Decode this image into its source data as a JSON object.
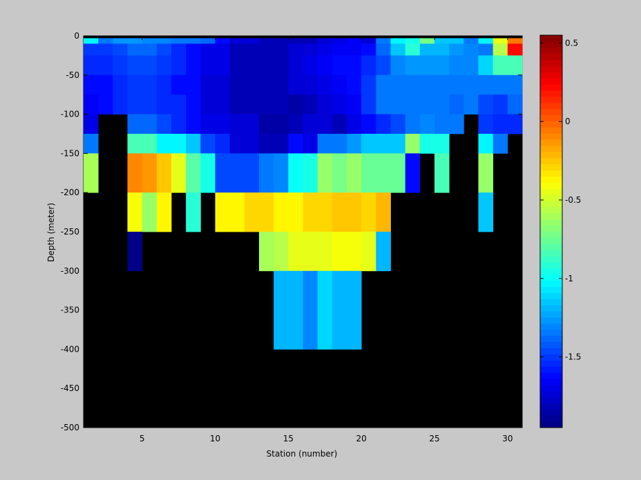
{
  "chart_data": {
    "type": "heatmap",
    "title": "",
    "xlabel": "Station (number)",
    "ylabel": "Depth (meter)",
    "xlim": [
      1,
      31
    ],
    "ylim": [
      -500,
      0
    ],
    "x_ticks": [
      5,
      10,
      15,
      20,
      25,
      30
    ],
    "y_ticks": [
      0,
      -50,
      -100,
      -150,
      -200,
      -250,
      -300,
      -350,
      -400,
      -450,
      -500
    ],
    "colorbar": {
      "range": [
        -1.95,
        0.55
      ],
      "ticks": [
        0.5,
        0,
        -0.5,
        -1,
        -1.5
      ],
      "tick_labels": [
        "0.5",
        "0",
        "-0.5",
        "-1",
        "-1.5"
      ],
      "colormap": "jet",
      "levels": 64
    },
    "missing_color": "#000000",
    "background_color": "#c8c8c8",
    "x": [
      1.5,
      2.5,
      3.5,
      4.5,
      5.5,
      6.5,
      7.5,
      8.5,
      9.5,
      10.5,
      11.5,
      12.5,
      13.5,
      14.5,
      15.5,
      16.5,
      17.5,
      18.5,
      19.5,
      20.5,
      21.5,
      22.5,
      23.5,
      24.5,
      25.5,
      26.5,
      27.5,
      28.5,
      29.5,
      30.5
    ],
    "depth_bands": [
      {
        "top": 0,
        "bottom": -3
      },
      {
        "top": -3,
        "bottom": -10
      },
      {
        "top": -10,
        "bottom": -25
      },
      {
        "top": -25,
        "bottom": -50
      },
      {
        "top": -50,
        "bottom": -75
      },
      {
        "top": -75,
        "bottom": -100
      },
      {
        "top": -100,
        "bottom": -125
      },
      {
        "top": -125,
        "bottom": -150
      },
      {
        "top": -150,
        "bottom": -200
      },
      {
        "top": -200,
        "bottom": -250
      },
      {
        "top": -250,
        "bottom": -300
      },
      {
        "top": -300,
        "bottom": -400
      },
      {
        "top": -400,
        "bottom": -500
      }
    ],
    "values": [
      [
        null,
        null,
        null,
        null,
        null,
        null,
        null,
        null,
        null,
        null,
        null,
        null,
        null,
        null,
        null,
        null,
        null,
        null,
        null,
        null,
        null,
        null,
        null,
        null,
        null,
        null,
        null,
        null,
        null,
        null
      ],
      [
        -1.05,
        -1.35,
        -1.25,
        -1.25,
        -1.3,
        -1.3,
        -1.35,
        -1.35,
        -1.4,
        -1.6,
        -1.75,
        -1.75,
        -1.8,
        -1.8,
        -1.8,
        -1.8,
        -1.75,
        -1.7,
        -1.65,
        -1.75,
        -1.35,
        -1.05,
        -0.95,
        -0.7,
        -1.15,
        -1.15,
        -1.35,
        -1.05,
        -0.45,
        -0.05
      ],
      [
        -1.5,
        -1.5,
        -1.45,
        -1.4,
        -1.4,
        -1.45,
        -1.55,
        -1.6,
        -1.7,
        -1.7,
        -1.8,
        -1.8,
        -1.8,
        -1.8,
        -1.75,
        -1.75,
        -1.7,
        -1.65,
        -1.65,
        -1.6,
        -1.4,
        -1.15,
        -0.9,
        -1.2,
        -1.2,
        -1.25,
        -1.3,
        -1.35,
        -0.55,
        0.2
      ],
      [
        -1.55,
        -1.55,
        -1.5,
        -1.45,
        -1.45,
        -1.5,
        -1.55,
        -1.6,
        -1.7,
        -1.7,
        -1.8,
        -1.8,
        -1.8,
        -1.8,
        -1.75,
        -1.7,
        -1.65,
        -1.6,
        -1.6,
        -1.55,
        -1.45,
        -1.3,
        -1.25,
        -1.25,
        -1.25,
        -1.3,
        -1.3,
        -1.1,
        -0.85,
        -0.85
      ],
      [
        -1.6,
        -1.6,
        -1.55,
        -1.5,
        -1.5,
        -1.55,
        -1.6,
        -1.6,
        -1.75,
        -1.75,
        -1.8,
        -1.8,
        -1.8,
        -1.8,
        -1.75,
        -1.75,
        -1.7,
        -1.65,
        -1.6,
        -1.5,
        -1.35,
        -1.35,
        -1.35,
        -1.35,
        -1.35,
        -1.35,
        -1.35,
        -1.35,
        -1.35,
        -1.35
      ],
      [
        -1.65,
        -1.6,
        -1.55,
        -1.5,
        -1.5,
        -1.55,
        -1.55,
        -1.6,
        -1.75,
        -1.75,
        -1.8,
        -1.8,
        -1.8,
        -1.8,
        -1.85,
        -1.8,
        -1.75,
        -1.7,
        -1.65,
        -1.5,
        -1.35,
        -1.35,
        -1.35,
        -1.35,
        -1.35,
        -1.4,
        -1.35,
        -1.45,
        -1.5,
        -1.4
      ],
      [
        -1.7,
        null,
        null,
        -1.4,
        -1.4,
        -1.45,
        -1.55,
        -1.6,
        -1.7,
        -1.7,
        -1.75,
        -1.75,
        -1.85,
        -1.85,
        -1.8,
        -1.75,
        -1.75,
        -1.8,
        -1.7,
        -1.6,
        -1.55,
        -1.45,
        -1.35,
        -1.3,
        -1.35,
        -1.35,
        null,
        -1.5,
        -1.55,
        -1.55
      ],
      [
        -1.35,
        null,
        null,
        -0.85,
        -0.85,
        -1.05,
        -1.05,
        -1.15,
        -1.45,
        -1.55,
        -1.75,
        -1.75,
        -1.8,
        -1.8,
        -1.6,
        -1.7,
        -1.35,
        -1.35,
        -1.25,
        -1.15,
        -1.15,
        -1.15,
        -0.65,
        -0.95,
        -0.95,
        null,
        null,
        -1.05,
        -1.35,
        null
      ],
      [
        -0.6,
        null,
        null,
        -0.1,
        -0.15,
        -0.25,
        -0.45,
        -0.8,
        -0.95,
        -1.45,
        -1.45,
        -1.45,
        -1.35,
        -1.3,
        -1.0,
        -0.95,
        -0.65,
        -0.7,
        -0.65,
        -0.75,
        -0.75,
        -0.75,
        -1.6,
        null,
        -0.85,
        null,
        null,
        -0.65,
        null,
        null
      ],
      [
        null,
        null,
        null,
        -0.4,
        -0.65,
        -0.35,
        null,
        -0.9,
        null,
        -0.35,
        -0.35,
        -0.3,
        -0.3,
        -0.35,
        -0.35,
        -0.3,
        -0.3,
        -0.25,
        -0.25,
        -0.3,
        -0.2,
        null,
        null,
        null,
        null,
        null,
        null,
        -1.15,
        null,
        null
      ],
      [
        null,
        null,
        null,
        -1.95,
        null,
        null,
        null,
        null,
        null,
        null,
        null,
        null,
        -0.6,
        -0.55,
        -0.45,
        -0.45,
        -0.45,
        -0.4,
        -0.4,
        -0.45,
        -1.2,
        null,
        null,
        null,
        null,
        null,
        null,
        null,
        null,
        null
      ],
      [
        null,
        null,
        null,
        null,
        null,
        null,
        null,
        null,
        null,
        null,
        null,
        null,
        null,
        -1.2,
        -1.2,
        -1.3,
        -1.1,
        -1.2,
        -1.2,
        null,
        null,
        null,
        null,
        null,
        null,
        null,
        null,
        null,
        null,
        null
      ],
      [
        null,
        null,
        null,
        null,
        null,
        null,
        null,
        null,
        null,
        null,
        null,
        null,
        null,
        null,
        null,
        null,
        null,
        null,
        null,
        null,
        null,
        null,
        null,
        null,
        null,
        null,
        null,
        null,
        null,
        null
      ]
    ]
  }
}
